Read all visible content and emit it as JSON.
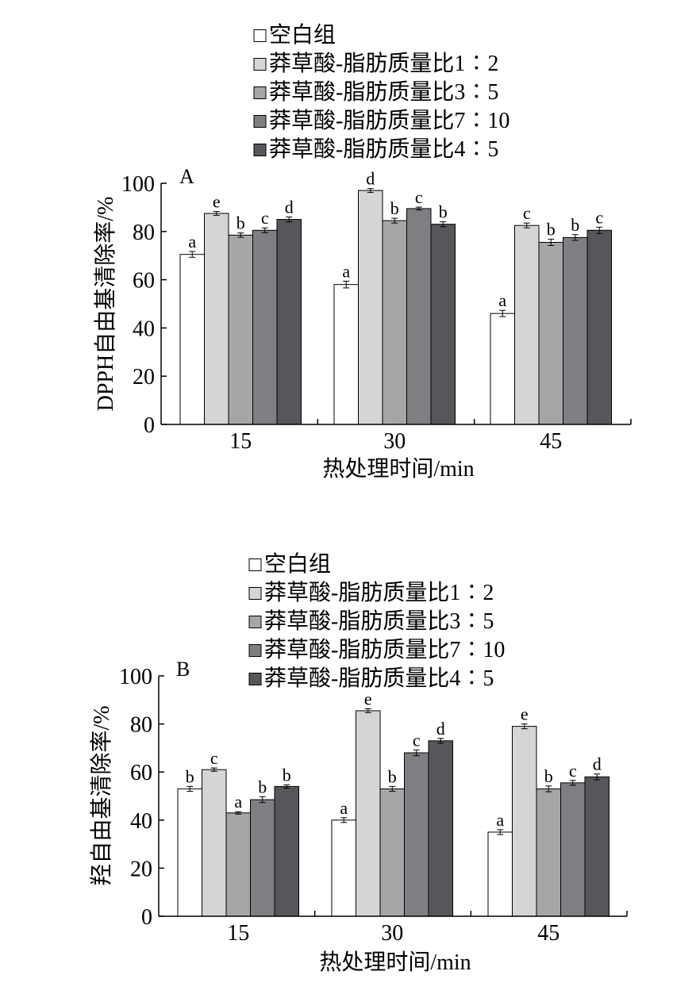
{
  "colors": {
    "series": [
      "#ffffff",
      "#d5d5d5",
      "#a6a6a7",
      "#7f7f83",
      "#56575a"
    ],
    "axis": "#000000"
  },
  "chart_data": [
    {
      "type": "bar",
      "panel_label": "A",
      "xlabel": "热处理时间/min",
      "ylabel": "DPPH自由基清除率/%",
      "ylim": [
        0,
        100
      ],
      "yticks": [
        "0",
        "20",
        "40",
        "60",
        "80",
        "100"
      ],
      "categories": [
        "15",
        "30",
        "45"
      ],
      "legend": {
        "placement": "top-center"
      },
      "series": [
        {
          "name": "空白组",
          "values": [
            70.5,
            58.0,
            46.0
          ],
          "errors": [
            1.2,
            1.4,
            1.3
          ],
          "letters": [
            "a",
            "a",
            "a"
          ]
        },
        {
          "name": "莽草酸-脂肪质量比1∶2",
          "values": [
            87.5,
            97.0,
            82.5
          ],
          "errors": [
            0.8,
            0.8,
            1.0
          ],
          "letters": [
            "e",
            "d",
            "c"
          ]
        },
        {
          "name": "莽草酸-脂肪质量比3∶5",
          "values": [
            78.5,
            84.5,
            75.5
          ],
          "errors": [
            0.9,
            1.0,
            1.3
          ],
          "letters": [
            "b",
            "b",
            "b"
          ]
        },
        {
          "name": "莽草酸-脂肪质量比7∶10",
          "values": [
            80.5,
            89.5,
            77.5
          ],
          "errors": [
            1.0,
            0.6,
            1.2
          ],
          "letters": [
            "c",
            "c",
            "b"
          ]
        },
        {
          "name": "莽草酸-脂肪质量比4∶5",
          "values": [
            85.0,
            83.0,
            80.5
          ],
          "errors": [
            1.0,
            1.0,
            1.3
          ],
          "letters": [
            "d",
            "b",
            "c"
          ]
        }
      ]
    },
    {
      "type": "bar",
      "panel_label": "B",
      "xlabel": "热处理时间/min",
      "ylabel": "羟自由基清除率/%",
      "ylim": [
        0,
        100
      ],
      "yticks": [
        "0",
        "20",
        "40",
        "60",
        "80",
        "100"
      ],
      "categories": [
        "15",
        "30",
        "45"
      ],
      "legend": {
        "placement": "top-center"
      },
      "series": [
        {
          "name": "空白组",
          "values": [
            53.0,
            40.0,
            35.0
          ],
          "errors": [
            1.0,
            1.0,
            1.0
          ],
          "letters": [
            "b",
            "a",
            "a"
          ]
        },
        {
          "name": "莽草酸-脂肪质量比1∶2",
          "values": [
            61.0,
            85.5,
            79.0
          ],
          "errors": [
            0.7,
            0.8,
            1.0
          ],
          "letters": [
            "c",
            "e",
            "e"
          ]
        },
        {
          "name": "莽草酸-脂肪质量比3∶5",
          "values": [
            43.0,
            53.0,
            53.0
          ],
          "errors": [
            0.5,
            1.0,
            1.2
          ],
          "letters": [
            "a",
            "b",
            "b"
          ]
        },
        {
          "name": "莽草酸-脂肪质量比7∶10",
          "values": [
            48.5,
            68.0,
            55.5
          ],
          "errors": [
            1.2,
            1.2,
            1.0
          ],
          "letters": [
            "b",
            "c",
            "c"
          ]
        },
        {
          "name": "莽草酸-脂肪质量比4∶5",
          "values": [
            54.0,
            73.0,
            58.0
          ],
          "errors": [
            0.7,
            1.0,
            1.2
          ],
          "letters": [
            "b",
            "d",
            "d"
          ]
        }
      ]
    }
  ]
}
